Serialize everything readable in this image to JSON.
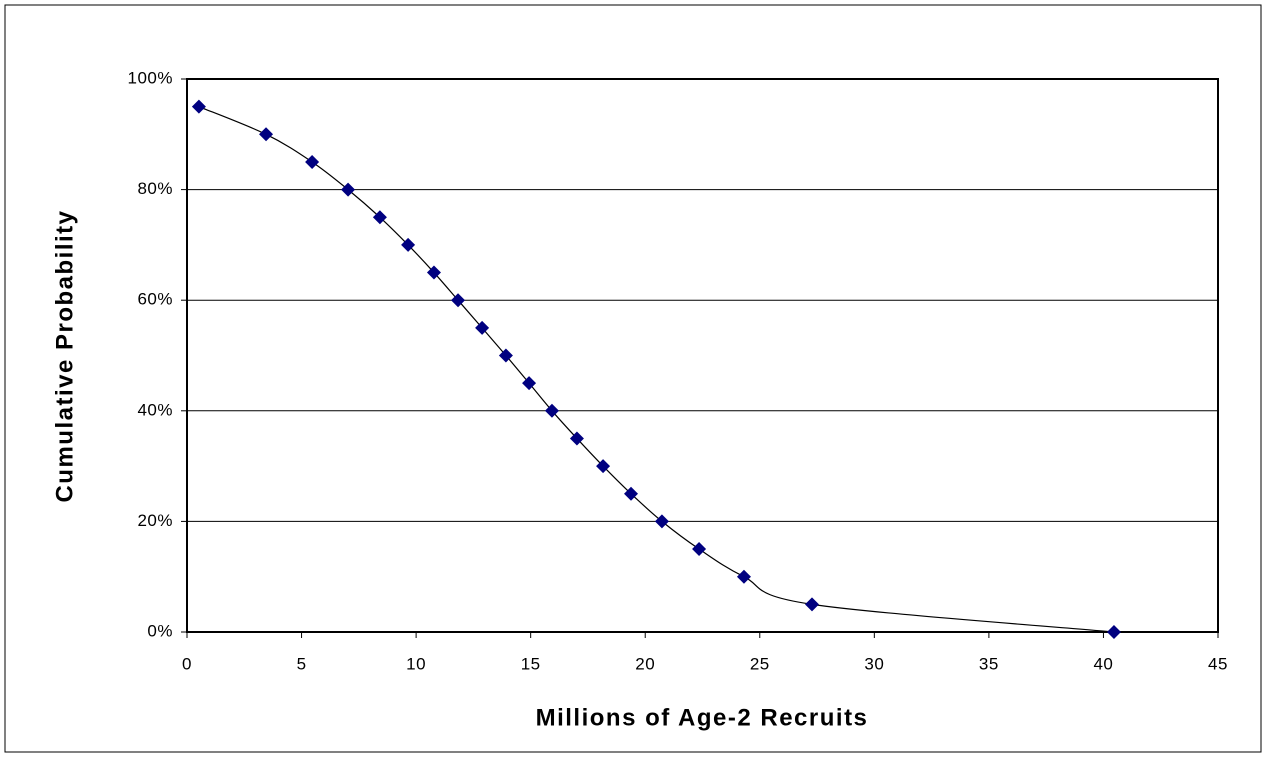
{
  "chart_data": {
    "type": "scatter",
    "x_label": "Millions of Age-2 Recruits",
    "y_label": "Cumulative Probability",
    "series": [
      {
        "color": "#000080",
        "x": [
          0.52,
          3.45,
          5.46,
          7.03,
          8.42,
          9.65,
          10.78,
          11.83,
          12.88,
          13.92,
          14.93,
          15.93,
          17.02,
          18.16,
          19.38,
          20.73,
          22.35,
          24.31,
          27.28,
          40.46
        ],
        "values": [
          95,
          90,
          85,
          80,
          75,
          70,
          65,
          60,
          55,
          50,
          45,
          40,
          35,
          30,
          25,
          20,
          15,
          10,
          5,
          0
        ]
      }
    ],
    "line_color": "#000000",
    "smooth": true,
    "xlim": [
      0,
      45
    ],
    "xticks": [
      0,
      5,
      10,
      15,
      20,
      25,
      30,
      35,
      40,
      45
    ],
    "ylim": [
      0,
      100
    ],
    "yticks": [
      {
        "value": 0,
        "label": "0%"
      },
      {
        "value": 20,
        "label": "20%"
      },
      {
        "value": 40,
        "label": "40%"
      },
      {
        "value": 60,
        "label": "60%"
      },
      {
        "value": 80,
        "label": "80%"
      },
      {
        "value": 100,
        "label": "100%"
      }
    ],
    "grid": true
  }
}
